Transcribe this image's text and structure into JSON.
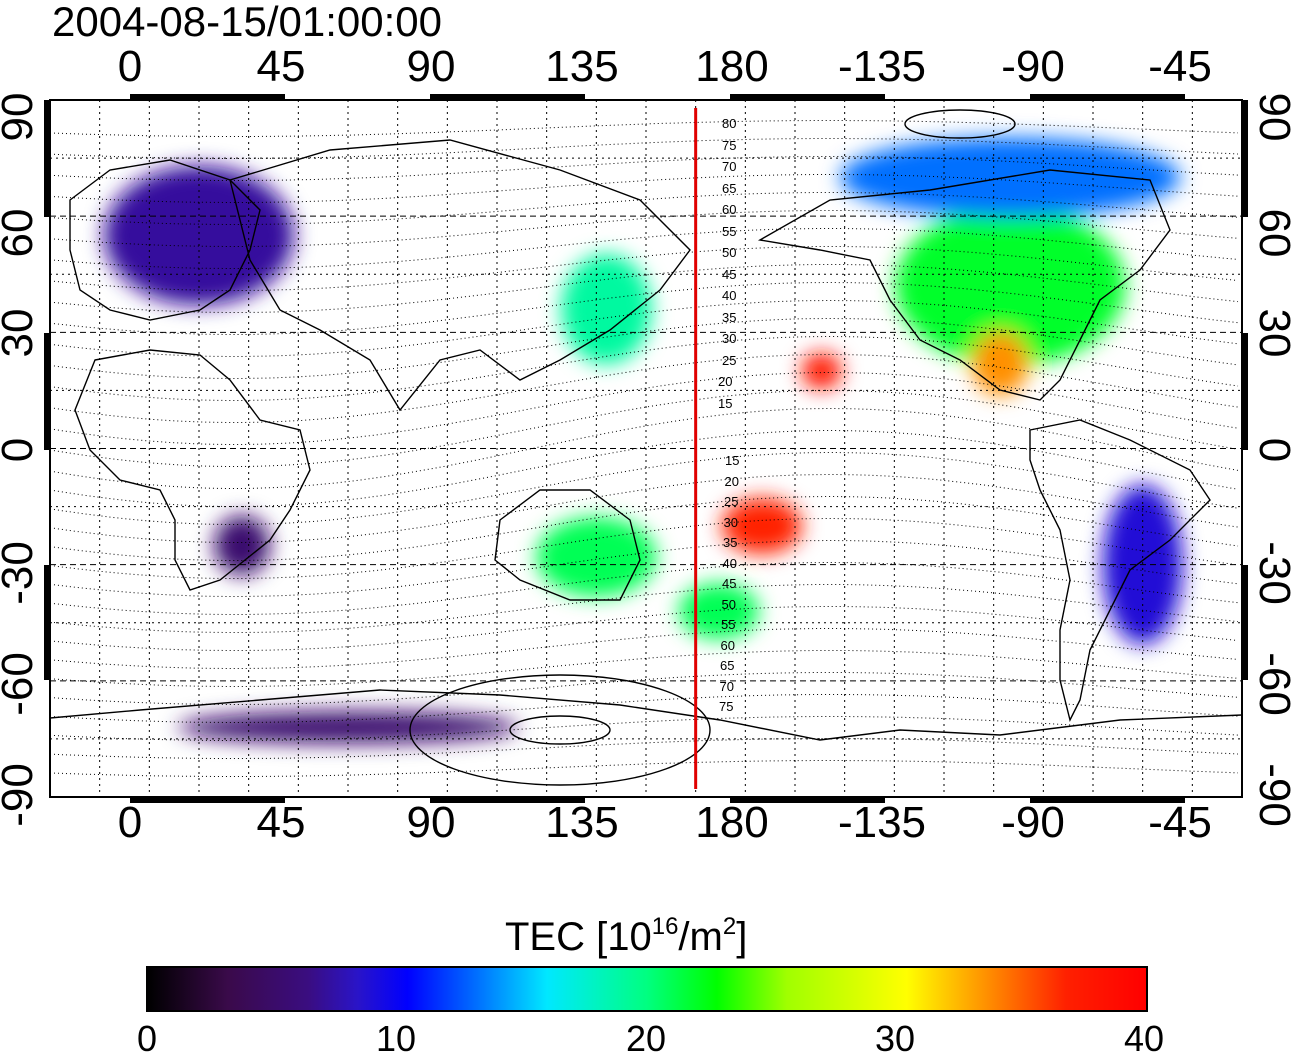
{
  "title": "2004-08-15/01:00:00",
  "axes": {
    "lon_ticks": [
      "0",
      "45",
      "90",
      "135",
      "180",
      "-135",
      "-90",
      "-45"
    ],
    "lat_ticks": [
      "90",
      "60",
      "30",
      "0",
      "-30",
      "-60",
      "-90"
    ]
  },
  "contour_labels": {
    "north": [
      "80",
      "75",
      "70",
      "65",
      "60",
      "55",
      "50",
      "45",
      "40",
      "35",
      "30",
      "25",
      "20",
      "15"
    ],
    "south": [
      "15",
      "20",
      "25",
      "30",
      "35",
      "40",
      "45",
      "50",
      "55",
      "60",
      "65",
      "70",
      "75"
    ]
  },
  "colorbar": {
    "title": "TEC  [10",
    "title_exp": "16",
    "title_unit": "/m",
    "title_unit_exp": "2",
    "title_end": "]",
    "ticks": [
      "0",
      "10",
      "20",
      "30",
      "40"
    ],
    "range": [
      0,
      40
    ]
  },
  "marker_line": {
    "longitude": 165,
    "color": "#e00000"
  },
  "tec_regions": [
    {
      "name": "europe",
      "lon": 15,
      "lat": 55,
      "tec": 7
    },
    {
      "name": "north-america",
      "lon": -100,
      "lat": 42,
      "tec": 22
    },
    {
      "name": "japan",
      "lon": 138,
      "lat": 36,
      "tec": 19
    },
    {
      "name": "pacific-tropical",
      "lon": 185,
      "lat": -20,
      "tec": 37
    },
    {
      "name": "mexico",
      "lon": -103,
      "lat": 22,
      "tec": 34
    },
    {
      "name": "hawaii",
      "lon": -157,
      "lat": 20,
      "tec": 38
    },
    {
      "name": "australia",
      "lon": 135,
      "lat": -28,
      "tec": 21
    },
    {
      "name": "new-zealand",
      "lon": 172,
      "lat": -42,
      "tec": 21
    },
    {
      "name": "south-america",
      "lon": -60,
      "lat": -30,
      "tec": 9
    },
    {
      "name": "antarctica",
      "lon": 60,
      "lat": -72,
      "tec": 5
    },
    {
      "name": "canada",
      "lon": -100,
      "lat": 70,
      "tec": 13
    },
    {
      "name": "southern-africa",
      "lon": 28,
      "lat": -25,
      "tec": 5
    }
  ]
}
